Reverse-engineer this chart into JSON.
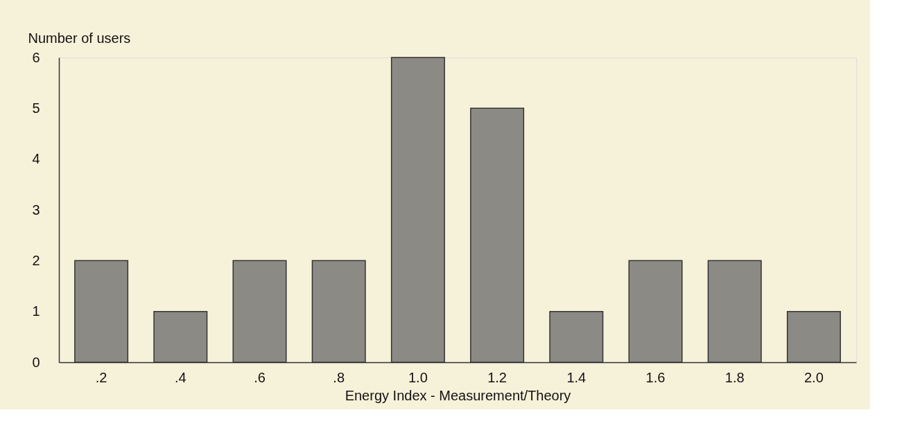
{
  "chart_data": {
    "type": "bar",
    "xlabel": "Energy Index - Measurement/Theory",
    "ylabel": "Number of users",
    "categories": [
      ".2",
      ".4",
      ".6",
      ".8",
      "1.0",
      "1.2",
      "1.4",
      "1.6",
      "1.8",
      "2.0"
    ],
    "values": [
      2,
      1,
      2,
      2,
      6,
      5,
      1,
      2,
      2,
      1
    ],
    "color": "#8c8a84",
    "ylim": [
      0,
      6
    ],
    "yticks": [
      0,
      1,
      2,
      3,
      4,
      5,
      6
    ],
    "grid": false
  }
}
